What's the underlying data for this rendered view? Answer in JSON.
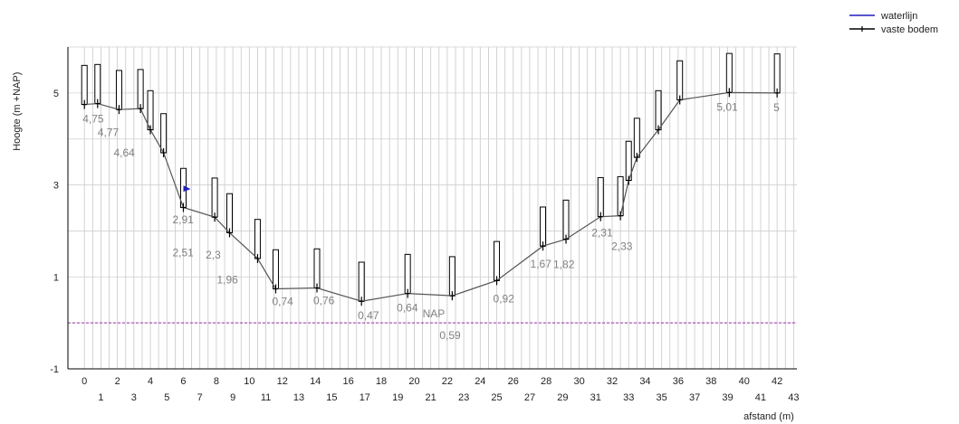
{
  "chart_data": {
    "type": "line",
    "title": "",
    "xlabel": "afstand (m)",
    "ylabel": "Hoogte (m +NAP)",
    "xlim": [
      -1,
      43.2
    ],
    "ylim": [
      -1,
      6
    ],
    "x_ticks_row1": [
      "0",
      "2",
      "4",
      "6",
      "8",
      "10",
      "12",
      "14",
      "16",
      "18",
      "20",
      "22",
      "24",
      "26",
      "28",
      "30",
      "32",
      "34",
      "36",
      "38",
      "40",
      "42"
    ],
    "x_ticks_row2": [
      "1",
      "3",
      "5",
      "7",
      "9",
      "11",
      "13",
      "15",
      "17",
      "19",
      "21",
      "23",
      "25",
      "27",
      "29",
      "31",
      "33",
      "35",
      "37",
      "39",
      "41",
      "43"
    ],
    "y_ticks": [
      "-1",
      "1",
      "3",
      "5"
    ],
    "grid": true,
    "legend_position": "top-right",
    "legend": [
      {
        "name": "waterlijn",
        "color": "#1f1fbf"
      },
      {
        "name": "vaste bodem",
        "color": "#000000"
      }
    ],
    "series": [
      {
        "name": "vaste bodem",
        "color": "#000000",
        "x": [
          0,
          0.8,
          2.1,
          3.4,
          4.0,
          4.8,
          6.0,
          7.9,
          8.8,
          10.5,
          11.6,
          14.1,
          16.8,
          19.6,
          22.3,
          25.0,
          27.8,
          29.2,
          31.3,
          32.5,
          33.0,
          33.5,
          34.8,
          36.1,
          39.1,
          42.0
        ],
        "y": [
          4.75,
          4.77,
          4.64,
          4.66,
          4.2,
          3.7,
          2.51,
          2.3,
          1.96,
          1.4,
          0.74,
          0.76,
          0.47,
          0.64,
          0.59,
          0.92,
          1.67,
          1.82,
          2.31,
          2.33,
          3.1,
          3.6,
          4.2,
          4.85,
          5.01,
          5
        ]
      }
    ],
    "reference_line": {
      "label": "NAP",
      "y": 0,
      "color": "#9933aa"
    },
    "data_labels": [
      {
        "text": "4,75",
        "x": 0,
        "y": 4.75
      },
      {
        "text": "4,77",
        "x": 0.8,
        "y": 4.77
      },
      {
        "text": "4,64",
        "x": 2.1,
        "y": 4.64
      },
      {
        "text": "2,91",
        "x": 6.0,
        "y": 2.91
      },
      {
        "text": "2,51",
        "x": 6.0,
        "y": 2.51
      },
      {
        "text": "2,3",
        "x": 7.9,
        "y": 2.3
      },
      {
        "text": "1,96",
        "x": 8.8,
        "y": 1.96
      },
      {
        "text": "0,74",
        "x": 11.6,
        "y": 0.74
      },
      {
        "text": "0,76",
        "x": 14.1,
        "y": 0.76
      },
      {
        "text": "0,47",
        "x": 16.8,
        "y": 0.47
      },
      {
        "text": "0,64",
        "x": 19.6,
        "y": 0.64
      },
      {
        "text": "0,59",
        "x": 22.3,
        "y": 0.59
      },
      {
        "text": "0,92",
        "x": 25.0,
        "y": 0.92
      },
      {
        "text": "1,67",
        "x": 27.8,
        "y": 1.67
      },
      {
        "text": "1,82",
        "x": 29.2,
        "y": 1.82
      },
      {
        "text": "2,31",
        "x": 31.3,
        "y": 2.31
      },
      {
        "text": "2,33",
        "x": 32.5,
        "y": 2.33
      },
      {
        "text": "5,01",
        "x": 39.1,
        "y": 5.01
      },
      {
        "text": "5",
        "x": 42.0,
        "y": 5
      }
    ]
  }
}
